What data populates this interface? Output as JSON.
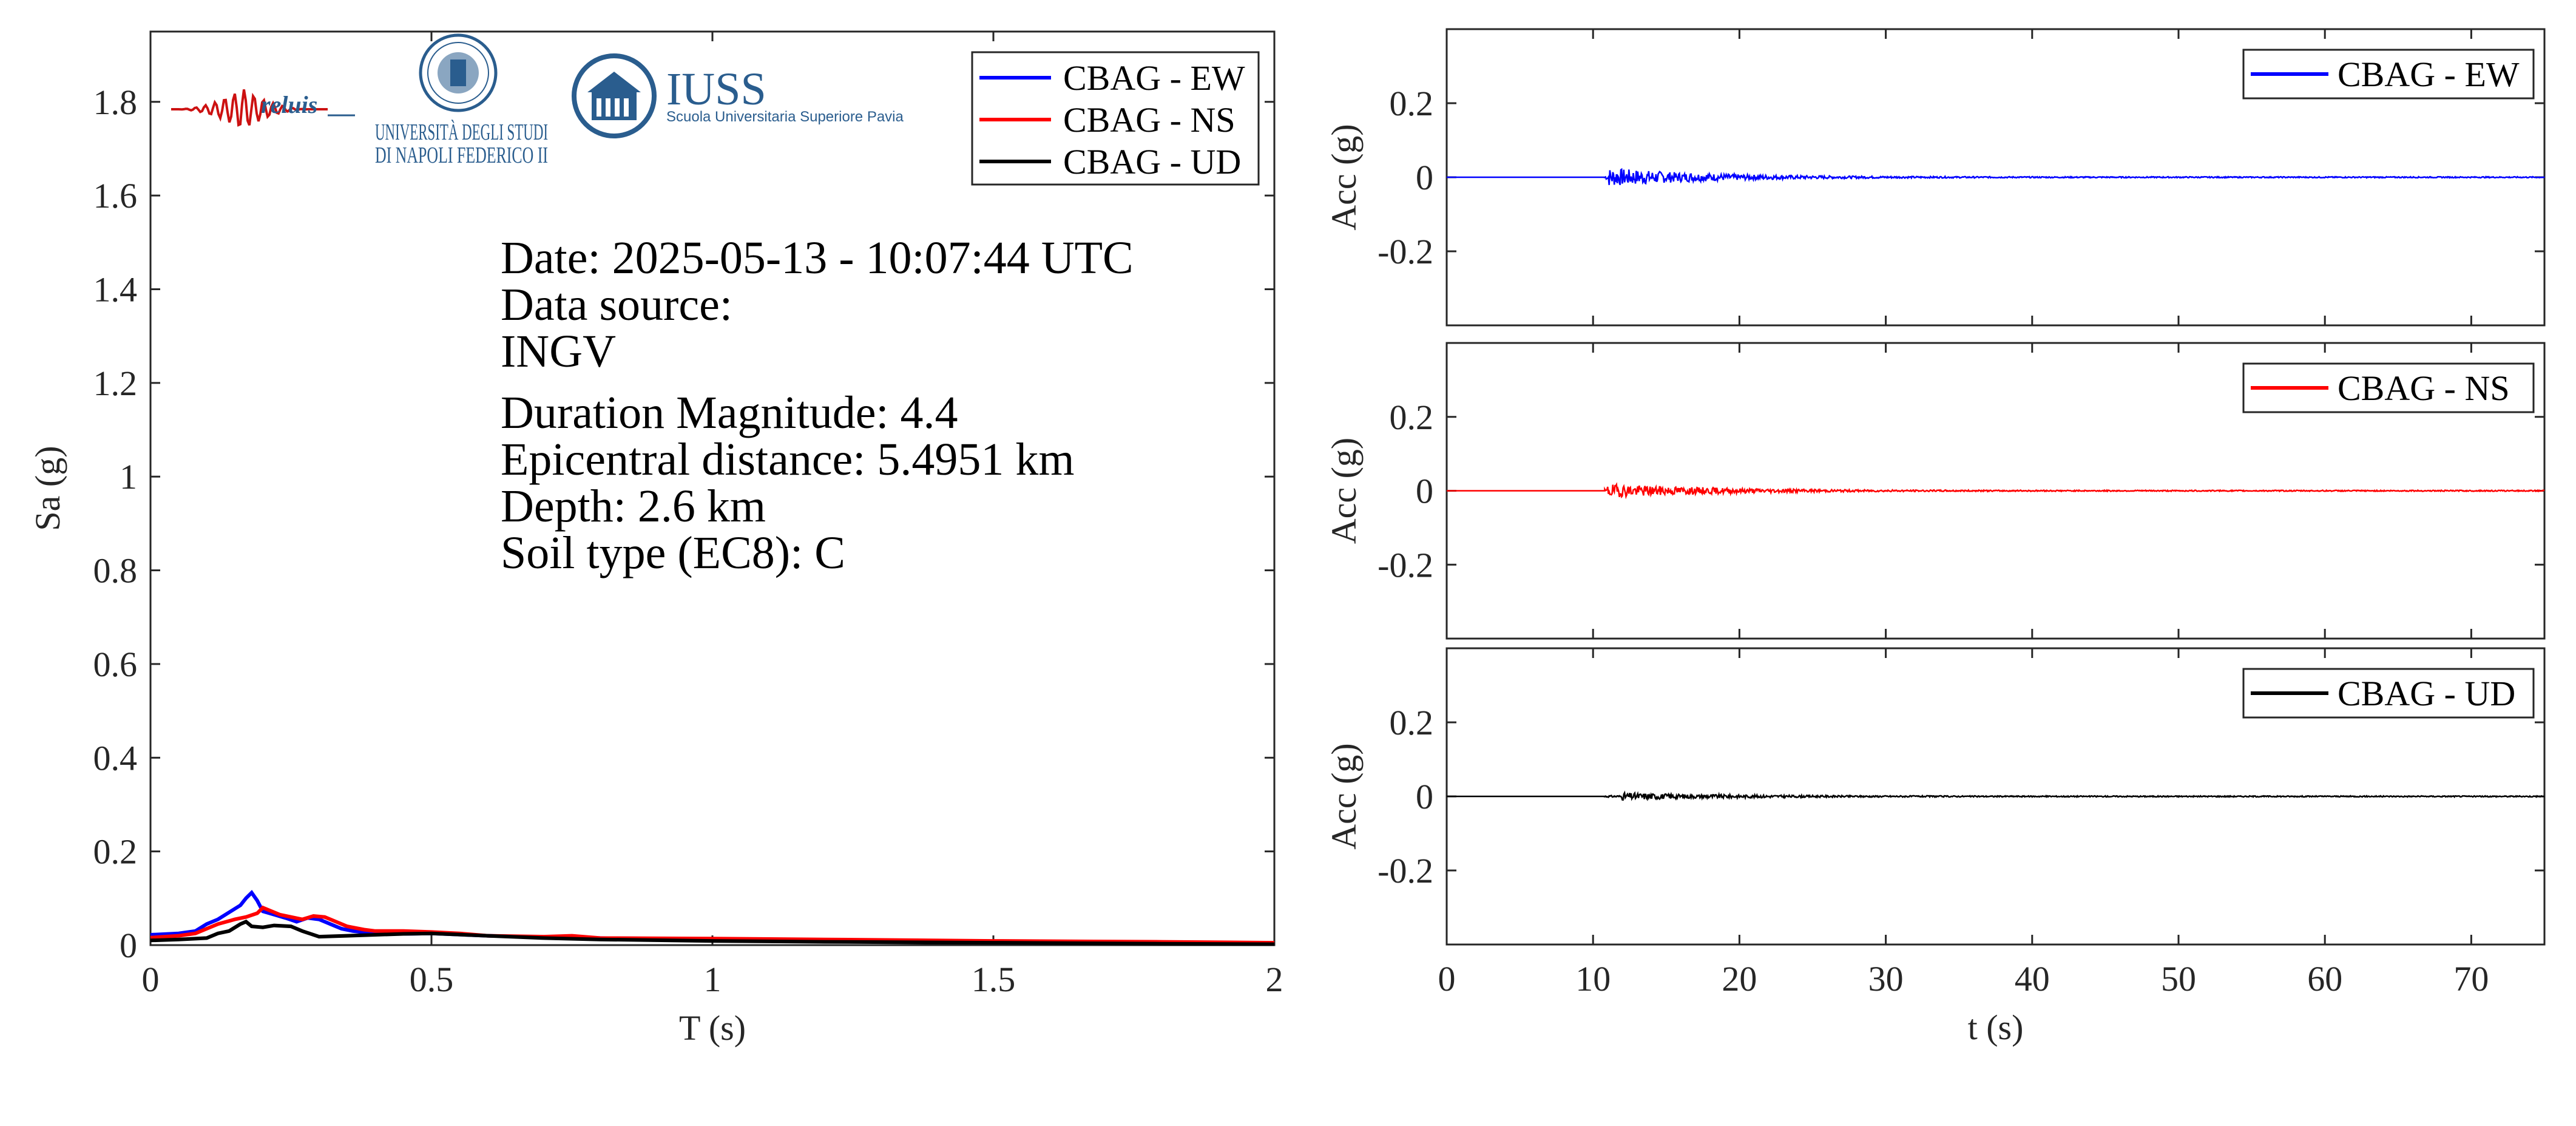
{
  "colors": {
    "ew": "#0000ff",
    "ns": "#ff0000",
    "ud": "#000000",
    "axis": "#262626",
    "logo_blue": "#2a5d8e",
    "reluis_red": "#cc1111"
  },
  "logos": {
    "reluis": {
      "text": "reluis",
      "icon": "seismograph-logo"
    },
    "unina": {
      "line1": "UNIVERSITÀ DEGLI STUDI",
      "line2": "DI NAPOLI FEDERICO II",
      "icon": "university-seal-logo"
    },
    "iuss": {
      "title": "IUSS",
      "subtitle": "Scuola Universitaria Superiore Pavia",
      "icon": "iuss-building-logo"
    }
  },
  "info": {
    "date": "Date: 2025-05-13 - 10:07:44 UTC",
    "source_label": "Data source:",
    "source": "INGV",
    "magnitude": "Duration Magnitude: 4.4",
    "distance": "Epicentral distance: 5.4951 km",
    "depth": "Depth: 2.6 km",
    "soil": "Soil type (EC8): C"
  },
  "chart_data": [
    {
      "type": "line",
      "xlabel": "T (s)",
      "ylabel": "Sa (g)",
      "xlim": [
        0,
        2
      ],
      "ylim": [
        0,
        1.95
      ],
      "xticks": [
        0,
        0.5,
        1,
        1.5,
        2
      ],
      "xtick_labels": [
        "0",
        "0.5",
        "1",
        "1.5",
        "2"
      ],
      "yticks": [
        0,
        0.2,
        0.4,
        0.6,
        0.8,
        1,
        1.2,
        1.4,
        1.6,
        1.8
      ],
      "ytick_labels": [
        "0",
        "0.2",
        "0.4",
        "0.6",
        "0.8",
        "1",
        "1.2",
        "1.4",
        "1.6",
        "1.8"
      ],
      "legend": "top-right",
      "series": [
        {
          "name": "CBAG - EW",
          "color": "#0000ff",
          "x": [
            0,
            0.05,
            0.08,
            0.1,
            0.12,
            0.14,
            0.16,
            0.17,
            0.18,
            0.19,
            0.2,
            0.22,
            0.24,
            0.26,
            0.28,
            0.3,
            0.32,
            0.34,
            0.36,
            0.4,
            0.45,
            0.5,
            0.6,
            0.7,
            0.8,
            1.0,
            1.2,
            1.5,
            1.8,
            2.0
          ],
          "y": [
            0.022,
            0.025,
            0.03,
            0.045,
            0.055,
            0.07,
            0.085,
            0.1,
            0.112,
            0.095,
            0.072,
            0.065,
            0.058,
            0.05,
            0.058,
            0.055,
            0.045,
            0.035,
            0.03,
            0.025,
            0.024,
            0.025,
            0.02,
            0.017,
            0.015,
            0.013,
            0.011,
            0.008,
            0.006,
            0.004
          ]
        },
        {
          "name": "CBAG - NS",
          "color": "#ff0000",
          "x": [
            0,
            0.05,
            0.08,
            0.1,
            0.12,
            0.15,
            0.17,
            0.19,
            0.2,
            0.21,
            0.23,
            0.25,
            0.27,
            0.29,
            0.31,
            0.33,
            0.35,
            0.38,
            0.4,
            0.45,
            0.5,
            0.55,
            0.6,
            0.7,
            0.75,
            0.8,
            1.0,
            1.2,
            1.5,
            1.8,
            2.0
          ],
          "y": [
            0.016,
            0.02,
            0.025,
            0.035,
            0.045,
            0.055,
            0.06,
            0.068,
            0.08,
            0.075,
            0.065,
            0.06,
            0.055,
            0.062,
            0.06,
            0.05,
            0.04,
            0.033,
            0.03,
            0.03,
            0.028,
            0.025,
            0.02,
            0.018,
            0.02,
            0.015,
            0.014,
            0.012,
            0.009,
            0.007,
            0.005
          ]
        },
        {
          "name": "CBAG - UD",
          "color": "#000000",
          "x": [
            0,
            0.05,
            0.1,
            0.12,
            0.14,
            0.16,
            0.17,
            0.18,
            0.2,
            0.22,
            0.25,
            0.27,
            0.3,
            0.35,
            0.4,
            0.45,
            0.5,
            0.6,
            0.7,
            0.8,
            1.0,
            1.2,
            1.5,
            1.8,
            2.0
          ],
          "y": [
            0.01,
            0.012,
            0.015,
            0.025,
            0.03,
            0.045,
            0.05,
            0.04,
            0.038,
            0.042,
            0.04,
            0.03,
            0.018,
            0.02,
            0.022,
            0.024,
            0.025,
            0.02,
            0.015,
            0.012,
            0.009,
            0.007,
            0.005,
            0.003,
            0.002
          ]
        }
      ]
    },
    {
      "type": "line",
      "ylabel": "Acc (g)",
      "xlim": [
        0,
        75
      ],
      "ylim": [
        -0.4,
        0.4
      ],
      "yticks": [
        -0.2,
        0,
        0.2
      ],
      "ytick_labels": [
        "-0.2",
        "0",
        "0.2"
      ],
      "xticks": [
        10,
        20,
        30,
        40,
        50,
        60,
        70
      ],
      "legend": "top-right",
      "series": [
        {
          "name": "CBAG - EW",
          "color": "#0000ff",
          "peak_acc": 0.025,
          "strong_motion": [
            11,
            16.5
          ],
          "record_start": 10.8
        }
      ]
    },
    {
      "type": "line",
      "ylabel": "Acc (g)",
      "xlim": [
        0,
        75
      ],
      "ylim": [
        -0.4,
        0.4
      ],
      "yticks": [
        -0.2,
        0,
        0.2
      ],
      "ytick_labels": [
        "-0.2",
        "0",
        "0.2"
      ],
      "xticks": [
        10,
        20,
        30,
        40,
        50,
        60,
        70
      ],
      "legend": "top-right",
      "series": [
        {
          "name": "CBAG - NS",
          "color": "#ff0000",
          "peak_acc": 0.018,
          "strong_motion": [
            11,
            17.5
          ],
          "record_start": 10.8
        }
      ]
    },
    {
      "type": "line",
      "xlabel": "t (s)",
      "ylabel": "Acc (g)",
      "xlim": [
        0,
        75
      ],
      "ylim": [
        -0.4,
        0.4
      ],
      "yticks": [
        -0.2,
        0,
        0.2
      ],
      "ytick_labels": [
        "-0.2",
        "0",
        "0.2"
      ],
      "xticks": [
        0,
        10,
        20,
        30,
        40,
        50,
        60,
        70
      ],
      "xtick_labels": [
        "0",
        "10",
        "20",
        "30",
        "40",
        "50",
        "60",
        "70"
      ],
      "legend": "top-right",
      "series": [
        {
          "name": "CBAG - UD",
          "color": "#000000",
          "peak_acc": 0.01,
          "strong_motion": [
            12,
            17.5
          ],
          "record_start": 10.8
        }
      ]
    }
  ]
}
